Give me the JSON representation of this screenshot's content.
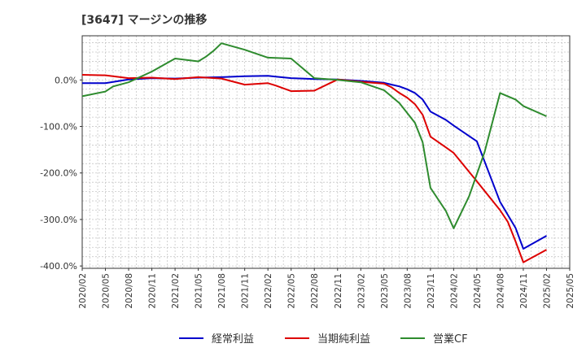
{
  "chart_data": {
    "type": "line",
    "title": "[3647]  マージンの推移",
    "xlabel": "",
    "ylabel": "",
    "x_ticks": [
      "2020/02",
      "2020/05",
      "2020/08",
      "2020/11",
      "2021/02",
      "2021/05",
      "2021/08",
      "2021/11",
      "2022/02",
      "2022/05",
      "2022/08",
      "2022/11",
      "2023/02",
      "2023/05",
      "2023/08",
      "2023/11",
      "2024/02",
      "2024/05",
      "2024/08",
      "2024/11",
      "2025/02",
      "2025/05"
    ],
    "y_ticks": [
      "0.0%",
      "-100.0%",
      "-200.0%",
      "-300.0%",
      "-400.0%"
    ],
    "y_tick_values": [
      0,
      -100,
      -200,
      -300,
      -400
    ],
    "ylim": [
      -405,
      95
    ],
    "grid": true,
    "legend_position": "bottom",
    "series": [
      {
        "name": "経常利益",
        "color": "#0000cc",
        "points": [
          [
            "2020/02",
            -7
          ],
          [
            "2020/05",
            -7
          ],
          [
            "2020/08",
            1
          ],
          [
            "2020/11",
            4
          ],
          [
            "2021/02",
            3
          ],
          [
            "2021/05",
            5
          ],
          [
            "2021/08",
            6
          ],
          [
            "2021/11",
            8
          ],
          [
            "2022/02",
            9
          ],
          [
            "2022/03",
            7
          ],
          [
            "2022/05",
            4
          ],
          [
            "2022/08",
            2
          ],
          [
            "2022/11",
            1
          ],
          [
            "2023/02",
            -2
          ],
          [
            "2023/05",
            -6
          ],
          [
            "2023/06",
            -10
          ],
          [
            "2023/07",
            -14
          ],
          [
            "2023/08",
            -20
          ],
          [
            "2023/09",
            -28
          ],
          [
            "2023/10",
            -42
          ],
          [
            "2023/11",
            -68
          ],
          [
            "2024/01",
            -86
          ],
          [
            "2024/02",
            -98
          ],
          [
            "2024/05",
            -132
          ],
          [
            "2024/08",
            -262
          ],
          [
            "2024/10",
            -318
          ],
          [
            "2024/11",
            -363
          ],
          [
            "2025/02",
            -335
          ]
        ]
      },
      {
        "name": "当期純利益",
        "color": "#dd0000",
        "points": [
          [
            "2020/02",
            11
          ],
          [
            "2020/05",
            10
          ],
          [
            "2020/08",
            4
          ],
          [
            "2020/11",
            5
          ],
          [
            "2021/02",
            2
          ],
          [
            "2021/05",
            6
          ],
          [
            "2021/08",
            3
          ],
          [
            "2021/11",
            -10
          ],
          [
            "2022/02",
            -7
          ],
          [
            "2022/03",
            -12
          ],
          [
            "2022/05",
            -24
          ],
          [
            "2022/08",
            -23
          ],
          [
            "2022/10",
            -7
          ],
          [
            "2022/11",
            1
          ],
          [
            "2023/02",
            -4
          ],
          [
            "2023/05",
            -8
          ],
          [
            "2023/06",
            -16
          ],
          [
            "2023/07",
            -28
          ],
          [
            "2023/08",
            -38
          ],
          [
            "2023/09",
            -52
          ],
          [
            "2023/10",
            -75
          ],
          [
            "2023/11",
            -122
          ],
          [
            "2024/01",
            -145
          ],
          [
            "2024/02",
            -157
          ],
          [
            "2024/05",
            -218
          ],
          [
            "2024/08",
            -280
          ],
          [
            "2024/09",
            -305
          ],
          [
            "2024/10",
            -347
          ],
          [
            "2024/11",
            -392
          ],
          [
            "2025/02",
            -365
          ]
        ]
      },
      {
        "name": "営業CF",
        "color": "#2e8b2e",
        "points": [
          [
            "2020/02",
            -35
          ],
          [
            "2020/05",
            -25
          ],
          [
            "2020/06",
            -14
          ],
          [
            "2020/08",
            -5
          ],
          [
            "2020/11",
            18
          ],
          [
            "2021/02",
            46
          ],
          [
            "2021/05",
            40
          ],
          [
            "2021/06",
            50
          ],
          [
            "2021/07",
            63
          ],
          [
            "2021/08",
            79
          ],
          [
            "2021/11",
            65
          ],
          [
            "2022/02",
            48
          ],
          [
            "2022/05",
            46
          ],
          [
            "2022/08",
            4
          ],
          [
            "2022/11",
            0
          ],
          [
            "2023/02",
            -5
          ],
          [
            "2023/05",
            -22
          ],
          [
            "2023/07",
            -50
          ],
          [
            "2023/09",
            -92
          ],
          [
            "2023/10",
            -134
          ],
          [
            "2023/11",
            -232
          ],
          [
            "2024/01",
            -282
          ],
          [
            "2024/02",
            -319
          ],
          [
            "2024/04",
            -250
          ],
          [
            "2024/06",
            -155
          ],
          [
            "2024/08",
            -28
          ],
          [
            "2024/10",
            -42
          ],
          [
            "2024/11",
            -56
          ],
          [
            "2025/02",
            -78
          ]
        ]
      }
    ]
  }
}
